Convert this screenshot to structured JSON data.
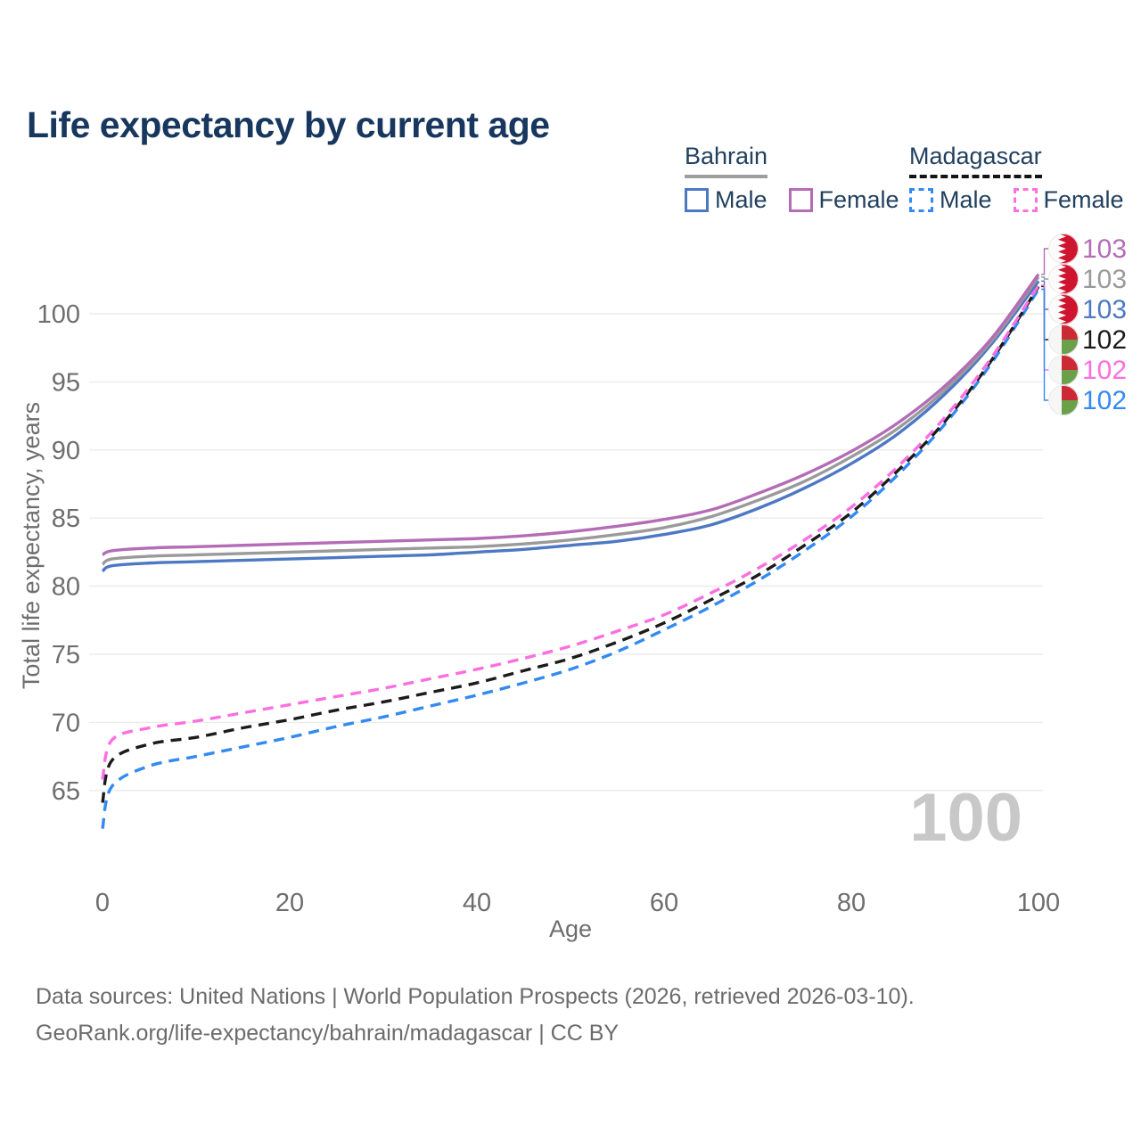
{
  "title": "Life expectancy by current age",
  "watermark": "100",
  "legend": {
    "groups": [
      {
        "name": "Bahrain",
        "line_style": "solid",
        "underline_color": "#9e9e9e",
        "items": [
          {
            "label": "Male",
            "color": "#4d78c3",
            "dashed": false
          },
          {
            "label": "Female",
            "color": "#b46cb6",
            "dashed": false
          }
        ]
      },
      {
        "name": "Madagascar",
        "line_style": "dashed",
        "underline_color": "#141414",
        "items": [
          {
            "label": "Male",
            "color": "#338af1",
            "dashed": true
          },
          {
            "label": "Female",
            "color": "#fb6fe0",
            "dashed": true
          }
        ]
      }
    ]
  },
  "footer": {
    "line1": "Data sources: United Nations | World Population Prospects (2026, retrieved 2026-03-10).",
    "line2": "GeoRank.org/life-expectancy/bahrain/madagascar | CC BY"
  },
  "colors": {
    "title": "#17375e",
    "axis_text": "#6e6e6e",
    "grid": "#ebebeb",
    "watermark": "#c8c8c8",
    "legend_text": "#22405f",
    "bahrain_flag_red": "#cf1430",
    "bahrain_flag_white": "#fbfbfb",
    "madagascar_flag_red": "#cc2936",
    "madagascar_flag_green": "#6ba04b",
    "madagascar_flag_white": "#f6f6f6"
  },
  "chart_data": {
    "type": "line",
    "title": "Life expectancy by current age",
    "xlabel": "Age",
    "ylabel": "Total life expectancy, years",
    "xlim": [
      0,
      100
    ],
    "ylim": [
      62,
      104
    ],
    "x_ticks": [
      0,
      20,
      40,
      60,
      80,
      100
    ],
    "y_ticks": [
      65,
      70,
      75,
      80,
      85,
      90,
      95,
      100
    ],
    "grid": true,
    "legend_position": "top-right",
    "x": [
      0,
      1,
      5,
      10,
      15,
      20,
      25,
      30,
      35,
      40,
      45,
      50,
      55,
      60,
      65,
      70,
      75,
      80,
      85,
      90,
      95,
      100
    ],
    "series": [
      {
        "name": "Bahrain Female",
        "country": "Bahrain",
        "group": "Female",
        "color": "#b46cb6",
        "dashed": false,
        "flag": "bahrain",
        "end_label": "103",
        "values": [
          82.3,
          82.6,
          82.8,
          82.9,
          83.0,
          83.1,
          83.2,
          83.3,
          83.4,
          83.5,
          83.7,
          84.0,
          84.4,
          84.9,
          85.6,
          86.8,
          88.2,
          89.9,
          92.0,
          94.7,
          98.2,
          102.9
        ]
      },
      {
        "name": "Bahrain Both sexes",
        "country": "Bahrain",
        "group": "Both sexes",
        "color": "#9a9a9a",
        "dashed": false,
        "flag": "bahrain",
        "end_label": "103",
        "values": [
          81.6,
          82.0,
          82.2,
          82.3,
          82.4,
          82.5,
          82.6,
          82.7,
          82.8,
          82.9,
          83.1,
          83.4,
          83.8,
          84.3,
          85.1,
          86.3,
          87.7,
          89.5,
          91.6,
          94.4,
          98.0,
          102.7
        ]
      },
      {
        "name": "Bahrain Male",
        "country": "Bahrain",
        "group": "Male",
        "color": "#4d78c3",
        "dashed": false,
        "flag": "bahrain",
        "end_label": "103",
        "values": [
          81.1,
          81.5,
          81.7,
          81.8,
          81.9,
          82.0,
          82.1,
          82.2,
          82.3,
          82.5,
          82.7,
          83.0,
          83.3,
          83.8,
          84.5,
          85.7,
          87.2,
          89.0,
          91.2,
          94.1,
          97.8,
          102.4
        ]
      },
      {
        "name": "Madagascar Both sexes",
        "country": "Madagascar",
        "group": "Both sexes",
        "color": "#1b1b1b",
        "dashed": true,
        "flag": "madagascar",
        "end_label": "102",
        "values": [
          64.1,
          67.2,
          68.4,
          68.9,
          69.6,
          70.2,
          70.9,
          71.5,
          72.2,
          72.9,
          73.8,
          74.7,
          75.9,
          77.3,
          79.0,
          80.8,
          83.0,
          85.4,
          88.5,
          92.1,
          96.6,
          102.0
        ]
      },
      {
        "name": "Madagascar Female",
        "country": "Madagascar",
        "group": "Female",
        "color": "#fb6fe0",
        "dashed": true,
        "flag": "madagascar",
        "end_label": "102",
        "values": [
          65.8,
          68.7,
          69.6,
          70.1,
          70.7,
          71.3,
          71.9,
          72.5,
          73.2,
          73.9,
          74.7,
          75.6,
          76.7,
          77.9,
          79.5,
          81.3,
          83.4,
          85.8,
          88.8,
          92.4,
          96.8,
          102.1
        ]
      },
      {
        "name": "Madagascar Male",
        "country": "Madagascar",
        "group": "Male",
        "color": "#338af1",
        "dashed": true,
        "flag": "madagascar",
        "end_label": "102",
        "values": [
          62.2,
          65.3,
          66.8,
          67.5,
          68.2,
          68.9,
          69.7,
          70.4,
          71.2,
          72.0,
          72.9,
          73.9,
          75.2,
          76.8,
          78.5,
          80.4,
          82.6,
          85.1,
          88.2,
          91.9,
          96.4,
          101.8
        ]
      }
    ]
  }
}
